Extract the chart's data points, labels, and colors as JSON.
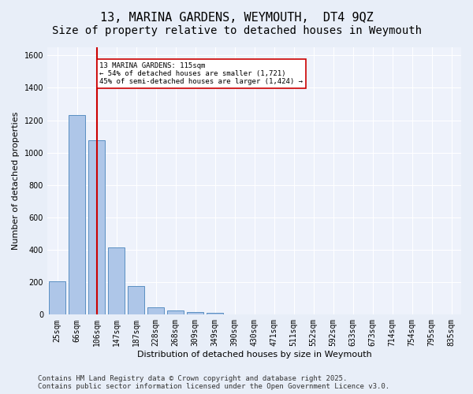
{
  "title1": "13, MARINA GARDENS, WEYMOUTH,  DT4 9QZ",
  "title2": "Size of property relative to detached houses in Weymouth",
  "xlabel": "Distribution of detached houses by size in Weymouth",
  "ylabel": "Number of detached properties",
  "categories": [
    "25sqm",
    "66sqm",
    "106sqm",
    "147sqm",
    "187sqm",
    "228sqm",
    "268sqm",
    "309sqm",
    "349sqm",
    "390sqm",
    "430sqm",
    "471sqm",
    "511sqm",
    "552sqm",
    "592sqm",
    "633sqm",
    "673sqm",
    "714sqm",
    "754sqm",
    "795sqm",
    "835sqm"
  ],
  "values": [
    205,
    1230,
    1075,
    415,
    178,
    45,
    26,
    18,
    10,
    0,
    0,
    0,
    0,
    0,
    0,
    0,
    0,
    0,
    0,
    0,
    0
  ],
  "bar_color": "#aec6e8",
  "bar_edge_color": "#5a8fc2",
  "vline_x": 2,
  "vline_color": "#cc0000",
  "annotation_text": "13 MARINA GARDENS: 115sqm\n← 54% of detached houses are smaller (1,721)\n45% of semi-detached houses are larger (1,424) →",
  "annotation_box_color": "#cc0000",
  "annotation_box_facecolor": "white",
  "ylim": [
    0,
    1650
  ],
  "yticks": [
    0,
    200,
    400,
    600,
    800,
    1000,
    1200,
    1400,
    1600
  ],
  "footer_text": "Contains HM Land Registry data © Crown copyright and database right 2025.\nContains public sector information licensed under the Open Government Licence v3.0.",
  "background_color": "#e8eef8",
  "plot_background_color": "#eef2fb",
  "grid_color": "#ffffff",
  "title_fontsize": 11,
  "subtitle_fontsize": 10,
  "label_fontsize": 8,
  "tick_fontsize": 7,
  "footer_fontsize": 6.5
}
